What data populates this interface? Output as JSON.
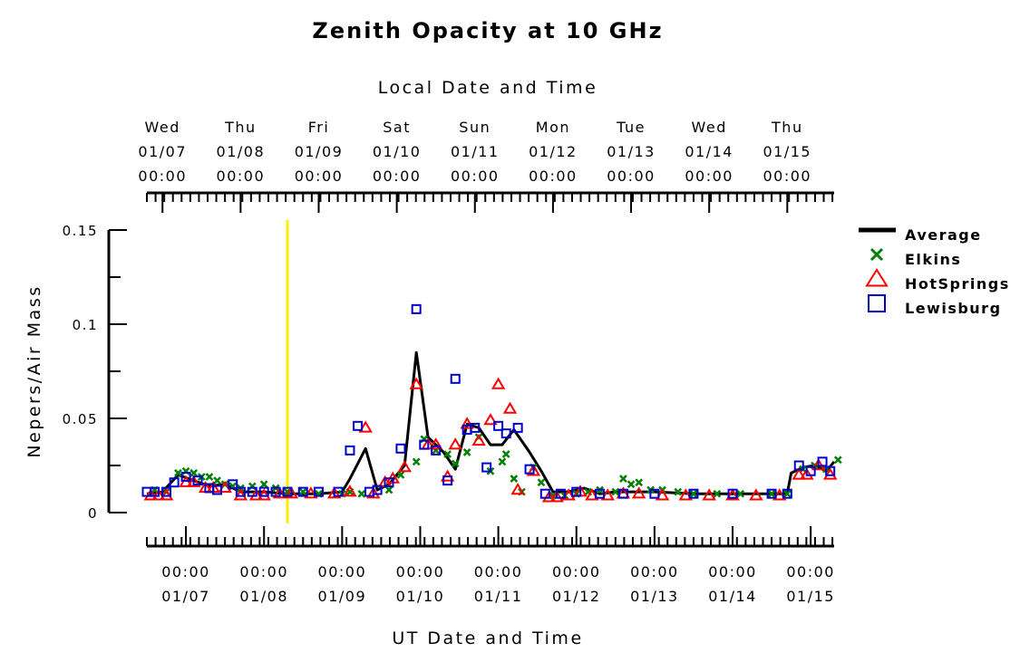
{
  "chart_data": {
    "type": "line",
    "title": "Zenith Opacity at 10 GHz",
    "top_axis_label": "Local Date and Time",
    "xlabel": "UT Date and Time",
    "ylabel": "Nepers/Air Mass",
    "ylim": [
      0,
      0.15
    ],
    "y_ticks": [
      "0",
      "0.05",
      "0.1",
      "0.15"
    ],
    "xlim_days": [
      0,
      8.8
    ],
    "marker_line_day": 1.8,
    "top_ticks": [
      {
        "day": 0.2,
        "weekday": "Wed",
        "date": "01/07",
        "time": "00:00"
      },
      {
        "day": 1.2,
        "weekday": "Thu",
        "date": "01/08",
        "time": "00:00"
      },
      {
        "day": 2.2,
        "weekday": "Fri",
        "date": "01/09",
        "time": "00:00"
      },
      {
        "day": 3.2,
        "weekday": "Sat",
        "date": "01/10",
        "time": "00:00"
      },
      {
        "day": 4.2,
        "weekday": "Sun",
        "date": "01/11",
        "time": "00:00"
      },
      {
        "day": 5.2,
        "weekday": "Mon",
        "date": "01/12",
        "time": "00:00"
      },
      {
        "day": 6.2,
        "weekday": "Tue",
        "date": "01/13",
        "time": "00:00"
      },
      {
        "day": 7.2,
        "weekday": "Wed",
        "date": "01/14",
        "time": "00:00"
      },
      {
        "day": 8.2,
        "weekday": "Thu",
        "date": "01/15",
        "time": "00:00"
      }
    ],
    "bottom_ticks": [
      {
        "day": 0.5,
        "time": "00:00",
        "date": "01/07"
      },
      {
        "day": 1.5,
        "time": "00:00",
        "date": "01/08"
      },
      {
        "day": 2.5,
        "time": "00:00",
        "date": "01/09"
      },
      {
        "day": 3.5,
        "time": "00:00",
        "date": "01/10"
      },
      {
        "day": 4.5,
        "time": "00:00",
        "date": "01/11"
      },
      {
        "day": 5.5,
        "time": "00:00",
        "date": "01/12"
      },
      {
        "day": 6.5,
        "time": "00:00",
        "date": "01/13"
      },
      {
        "day": 7.5,
        "time": "00:00",
        "date": "01/14"
      },
      {
        "day": 8.5,
        "time": "00:00",
        "date": "01/15"
      }
    ],
    "series": [
      {
        "name": "Average",
        "color": "#000000",
        "marker": "line",
        "points": [
          [
            0,
            0.01
          ],
          [
            0.2,
            0.011
          ],
          [
            0.4,
            0.02
          ],
          [
            0.6,
            0.017
          ],
          [
            0.8,
            0.014
          ],
          [
            1.0,
            0.015
          ],
          [
            1.2,
            0.011
          ],
          [
            1.5,
            0.011
          ],
          [
            1.8,
            0.01
          ],
          [
            2.0,
            0.01
          ],
          [
            2.2,
            0.01
          ],
          [
            2.5,
            0.011
          ],
          [
            2.6,
            0.018
          ],
          [
            2.8,
            0.034
          ],
          [
            2.95,
            0.012
          ],
          [
            3.1,
            0.015
          ],
          [
            3.3,
            0.025
          ],
          [
            3.45,
            0.085
          ],
          [
            3.6,
            0.04
          ],
          [
            3.8,
            0.032
          ],
          [
            3.95,
            0.023
          ],
          [
            4.1,
            0.047
          ],
          [
            4.25,
            0.045
          ],
          [
            4.4,
            0.036
          ],
          [
            4.55,
            0.036
          ],
          [
            4.7,
            0.044
          ],
          [
            4.9,
            0.032
          ],
          [
            5.05,
            0.022
          ],
          [
            5.2,
            0.011
          ],
          [
            5.4,
            0.011
          ],
          [
            5.6,
            0.013
          ],
          [
            5.8,
            0.01
          ],
          [
            6.0,
            0.011
          ],
          [
            6.5,
            0.011
          ],
          [
            7.0,
            0.01
          ],
          [
            7.5,
            0.01
          ],
          [
            8.0,
            0.01
          ],
          [
            8.2,
            0.01
          ],
          [
            8.25,
            0.021
          ],
          [
            8.4,
            0.024
          ],
          [
            8.55,
            0.025
          ],
          [
            8.7,
            0.022
          ],
          [
            8.8,
            0.027
          ]
        ]
      },
      {
        "name": "Elkins",
        "color": "#008000",
        "marker": "x",
        "points": [
          [
            0.1,
            0.012
          ],
          [
            0.25,
            0.011
          ],
          [
            0.4,
            0.021
          ],
          [
            0.5,
            0.022
          ],
          [
            0.6,
            0.021
          ],
          [
            0.7,
            0.019
          ],
          [
            0.8,
            0.019
          ],
          [
            0.9,
            0.017
          ],
          [
            1.0,
            0.015
          ],
          [
            1.1,
            0.014
          ],
          [
            1.2,
            0.013
          ],
          [
            1.35,
            0.014
          ],
          [
            1.5,
            0.015
          ],
          [
            1.65,
            0.013
          ],
          [
            1.8,
            0.011
          ],
          [
            2.0,
            0.011
          ],
          [
            2.2,
            0.01
          ],
          [
            2.5,
            0.01
          ],
          [
            2.6,
            0.011
          ],
          [
            2.75,
            0.01
          ],
          [
            3.1,
            0.012
          ],
          [
            3.25,
            0.02
          ],
          [
            3.45,
            0.027
          ],
          [
            3.55,
            0.039
          ],
          [
            3.7,
            0.033
          ],
          [
            3.85,
            0.031
          ],
          [
            3.95,
            0.026
          ],
          [
            4.1,
            0.032
          ],
          [
            4.25,
            0.04
          ],
          [
            4.4,
            0.022
          ],
          [
            4.55,
            0.027
          ],
          [
            4.6,
            0.031
          ],
          [
            4.7,
            0.018
          ],
          [
            4.8,
            0.011
          ],
          [
            4.95,
            0.024
          ],
          [
            5.05,
            0.016
          ],
          [
            5.2,
            0.009
          ],
          [
            5.35,
            0.009
          ],
          [
            5.5,
            0.01
          ],
          [
            5.65,
            0.011
          ],
          [
            5.8,
            0.012
          ],
          [
            6.0,
            0.011
          ],
          [
            6.1,
            0.018
          ],
          [
            6.2,
            0.015
          ],
          [
            6.3,
            0.016
          ],
          [
            6.45,
            0.012
          ],
          [
            6.6,
            0.012
          ],
          [
            6.8,
            0.011
          ],
          [
            7.0,
            0.01
          ],
          [
            7.3,
            0.01
          ],
          [
            7.6,
            0.01
          ],
          [
            8.0,
            0.01
          ],
          [
            8.2,
            0.01
          ],
          [
            8.4,
            0.023
          ],
          [
            8.55,
            0.025
          ],
          [
            8.7,
            0.023
          ],
          [
            8.85,
            0.028
          ]
        ]
      },
      {
        "name": "HotSprings",
        "color": "#ff0000",
        "marker": "triangle",
        "points": [
          [
            0.05,
            0.009
          ],
          [
            0.15,
            0.009
          ],
          [
            0.25,
            0.009
          ],
          [
            0.5,
            0.016
          ],
          [
            0.6,
            0.016
          ],
          [
            0.75,
            0.013
          ],
          [
            0.85,
            0.013
          ],
          [
            1.0,
            0.013
          ],
          [
            1.2,
            0.009
          ],
          [
            1.4,
            0.009
          ],
          [
            1.5,
            0.009
          ],
          [
            1.7,
            0.01
          ],
          [
            1.85,
            0.01
          ],
          [
            2.1,
            0.01
          ],
          [
            2.4,
            0.01
          ],
          [
            2.6,
            0.011
          ],
          [
            2.8,
            0.045
          ],
          [
            2.9,
            0.01
          ],
          [
            3.05,
            0.016
          ],
          [
            3.15,
            0.018
          ],
          [
            3.3,
            0.024
          ],
          [
            3.45,
            0.068
          ],
          [
            3.6,
            0.036
          ],
          [
            3.7,
            0.036
          ],
          [
            3.85,
            0.019
          ],
          [
            3.95,
            0.036
          ],
          [
            4.1,
            0.047
          ],
          [
            4.25,
            0.038
          ],
          [
            4.4,
            0.049
          ],
          [
            4.5,
            0.068
          ],
          [
            4.65,
            0.055
          ],
          [
            4.75,
            0.012
          ],
          [
            4.95,
            0.022
          ],
          [
            5.15,
            0.008
          ],
          [
            5.25,
            0.008
          ],
          [
            5.4,
            0.009
          ],
          [
            5.55,
            0.011
          ],
          [
            5.7,
            0.009
          ],
          [
            5.9,
            0.009
          ],
          [
            6.1,
            0.01
          ],
          [
            6.3,
            0.01
          ],
          [
            6.6,
            0.009
          ],
          [
            6.9,
            0.009
          ],
          [
            7.2,
            0.009
          ],
          [
            7.5,
            0.009
          ],
          [
            7.8,
            0.009
          ],
          [
            8.1,
            0.009
          ],
          [
            8.35,
            0.02
          ],
          [
            8.45,
            0.02
          ],
          [
            8.6,
            0.025
          ],
          [
            8.75,
            0.02
          ]
        ]
      },
      {
        "name": "Lewisburg",
        "color": "#0000cc",
        "marker": "square",
        "points": [
          [
            0.0,
            0.011
          ],
          [
            0.1,
            0.011
          ],
          [
            0.25,
            0.011
          ],
          [
            0.35,
            0.016
          ],
          [
            0.5,
            0.019
          ],
          [
            0.65,
            0.017
          ],
          [
            0.8,
            0.013
          ],
          [
            0.9,
            0.012
          ],
          [
            1.1,
            0.015
          ],
          [
            1.2,
            0.011
          ],
          [
            1.35,
            0.011
          ],
          [
            1.5,
            0.011
          ],
          [
            1.65,
            0.011
          ],
          [
            1.8,
            0.011
          ],
          [
            2.0,
            0.011
          ],
          [
            2.2,
            0.011
          ],
          [
            2.45,
            0.011
          ],
          [
            2.6,
            0.033
          ],
          [
            2.7,
            0.046
          ],
          [
            2.85,
            0.011
          ],
          [
            2.95,
            0.012
          ],
          [
            3.1,
            0.016
          ],
          [
            3.25,
            0.034
          ],
          [
            3.45,
            0.108
          ],
          [
            3.55,
            0.036
          ],
          [
            3.7,
            0.033
          ],
          [
            3.85,
            0.017
          ],
          [
            3.95,
            0.071
          ],
          [
            4.1,
            0.044
          ],
          [
            4.2,
            0.045
          ],
          [
            4.35,
            0.024
          ],
          [
            4.5,
            0.046
          ],
          [
            4.6,
            0.042
          ],
          [
            4.75,
            0.045
          ],
          [
            4.9,
            0.023
          ],
          [
            5.1,
            0.01
          ],
          [
            5.3,
            0.01
          ],
          [
            5.5,
            0.011
          ],
          [
            5.8,
            0.01
          ],
          [
            6.1,
            0.01
          ],
          [
            6.5,
            0.01
          ],
          [
            7.0,
            0.01
          ],
          [
            7.5,
            0.01
          ],
          [
            8.0,
            0.01
          ],
          [
            8.2,
            0.01
          ],
          [
            8.35,
            0.025
          ],
          [
            8.5,
            0.022
          ],
          [
            8.65,
            0.027
          ],
          [
            8.75,
            0.022
          ]
        ]
      }
    ]
  }
}
